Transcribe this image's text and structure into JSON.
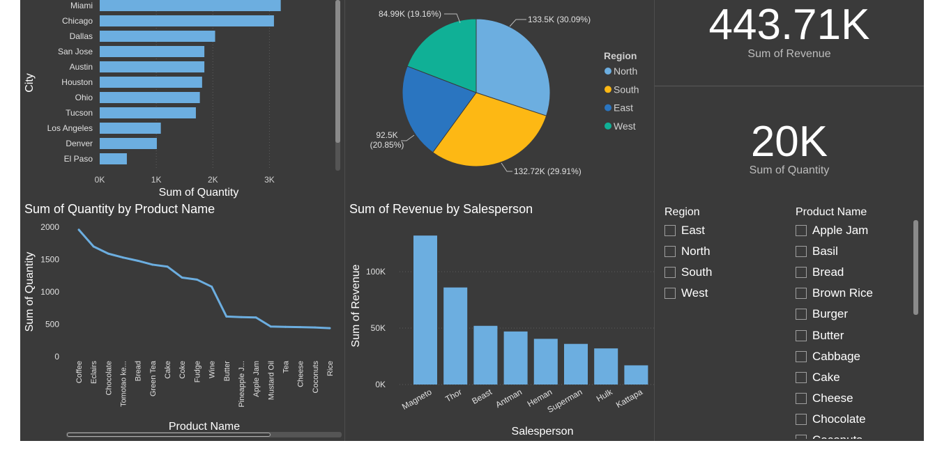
{
  "city_chart": {
    "chart_data": {
      "type": "bar",
      "orientation": "horizontal",
      "categories": [
        "Miami",
        "Chicago",
        "Dallas",
        "San Jose",
        "Austin",
        "Houston",
        "Ohio",
        "Tucson",
        "Los Angeles",
        "Denver",
        "El Paso"
      ],
      "values": [
        3200,
        3080,
        2040,
        1850,
        1850,
        1810,
        1770,
        1700,
        1080,
        1010,
        480
      ],
      "xlabel": "Sum of Quantity",
      "ylabel": "City",
      "xlim": [
        0,
        3500
      ],
      "xticks": [
        "0K",
        "1K",
        "2K",
        "3K"
      ],
      "grid": true,
      "color": "#6caee0"
    }
  },
  "region_pie": {
    "chart_data": {
      "type": "pie",
      "legend_title": "Region",
      "legend_position": "right",
      "slices": [
        {
          "name": "North",
          "value": 133.5,
          "label": "133.5K (30.09%)",
          "color": "#6caee0"
        },
        {
          "name": "South",
          "value": 132.72,
          "label": "132.72K (29.91%)",
          "color": "#fdb814"
        },
        {
          "name": "East",
          "value": 92.5,
          "label_lines": [
            "92.5K",
            "(20.85%)"
          ],
          "color": "#2a75c0"
        },
        {
          "name": "West",
          "value": 84.99,
          "label": "84.99K (19.16%)",
          "color": "#10b096"
        }
      ]
    }
  },
  "kpi_revenue": {
    "value": "443.71K",
    "label": "Sum of Revenue"
  },
  "kpi_quantity": {
    "value": "20K",
    "label": "Sum of Quantity"
  },
  "product_chart": {
    "title": "Sum of Quantity by Product Name",
    "chart_data": {
      "type": "line",
      "categories": [
        "Coffee",
        "Eclairs",
        "Chocolate",
        "Tomotao ke...",
        "Bread",
        "Green Tea",
        "Cake",
        "Coke",
        "Fudge",
        "Wine",
        "Butter",
        "Pineapple J...",
        "Apple Jam",
        "Mustard Oil",
        "Tea",
        "Cheese",
        "Coconuts",
        "Rice"
      ],
      "values": [
        1960,
        1700,
        1590,
        1530,
        1480,
        1420,
        1390,
        1220,
        1190,
        1080,
        620,
        610,
        605,
        465,
        460,
        455,
        450,
        440
      ],
      "xlabel": "Product Name",
      "ylabel": "Sum of Quantity",
      "ylim": [
        0,
        2000
      ],
      "yticks": [
        0,
        500,
        1000,
        1500,
        2000
      ],
      "color": "#6caee0"
    }
  },
  "salesperson_chart": {
    "title": "Sum of Revenue by Salesperson",
    "chart_data": {
      "type": "bar",
      "categories": [
        "Magneto",
        "Thor",
        "Beast",
        "Antman",
        "Heman",
        "Superman",
        "Hulk",
        "Kattapa"
      ],
      "values": [
        132000,
        86000,
        52000,
        47000,
        40500,
        36000,
        32000,
        17000
      ],
      "xlabel": "Salesperson",
      "ylabel": "Sum of Revenue",
      "ylim": [
        0,
        140000
      ],
      "yticks": [
        {
          "v": 0,
          "label": "0K"
        },
        {
          "v": 50000,
          "label": "50K"
        },
        {
          "v": 100000,
          "label": "100K"
        }
      ],
      "grid": true,
      "color": "#6caee0"
    }
  },
  "region_slicer": {
    "title": "Region",
    "items": [
      "East",
      "North",
      "South",
      "West"
    ]
  },
  "product_slicer": {
    "title": "Product Name",
    "items": [
      "Apple Jam",
      "Basil",
      "Bread",
      "Brown Rice",
      "Burger",
      "Butter",
      "Cabbage",
      "Cake",
      "Cheese",
      "Chocolate",
      "Coconuts"
    ]
  },
  "colors": {
    "background": "#3a3a3a",
    "bar": "#6caee0",
    "text": "#ffffff",
    "muted": "#d0d0d0"
  }
}
